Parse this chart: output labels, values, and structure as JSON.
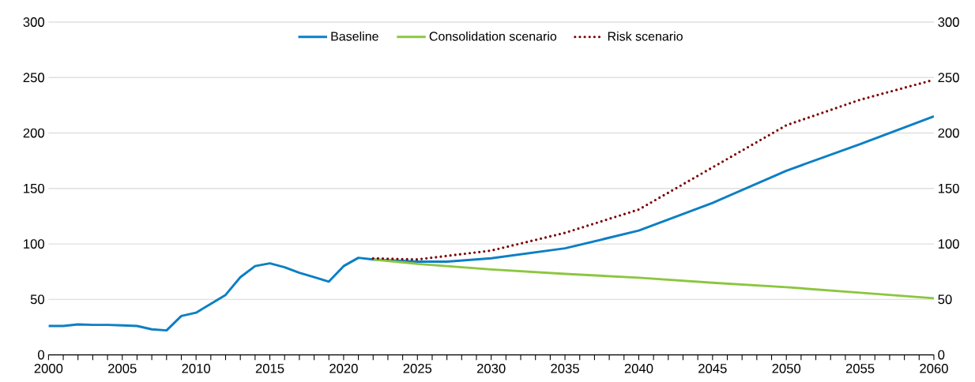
{
  "chart_data": {
    "type": "line",
    "series": [
      {
        "name": "Baseline",
        "color": "#0c7fc4",
        "line_style": "solid",
        "x": [
          2000,
          2001,
          2002,
          2003,
          2004,
          2005,
          2006,
          2007,
          2008,
          2009,
          2010,
          2011,
          2012,
          2013,
          2014,
          2015,
          2016,
          2017,
          2018,
          2019,
          2020,
          2021,
          2022,
          2025,
          2027,
          2030,
          2035,
          2040,
          2045,
          2050,
          2055,
          2060
        ],
        "values": [
          26,
          26,
          27.5,
          27,
          27,
          26.5,
          26,
          23,
          22,
          35,
          38,
          46,
          54,
          70,
          80,
          82.5,
          79,
          74,
          70,
          66,
          80,
          87.5,
          86,
          84,
          84,
          87,
          96,
          112,
          137,
          166,
          190,
          215
        ]
      },
      {
        "name": "Consolidation scenario",
        "color": "#8cc63f",
        "line_style": "solid",
        "x": [
          2022,
          2025,
          2030,
          2035,
          2040,
          2045,
          2050,
          2055,
          2060
        ],
        "values": [
          86,
          82,
          77,
          73,
          69.5,
          65,
          61,
          56,
          51
        ]
      },
      {
        "name": "Risk scenario",
        "color": "#7b0000",
        "line_style": "dotted",
        "x": [
          2022,
          2025,
          2030,
          2035,
          2040,
          2045,
          2050,
          2055,
          2060
        ],
        "values": [
          87,
          86,
          94,
          110,
          131,
          169,
          207,
          230,
          248
        ]
      }
    ],
    "xlim": [
      2000,
      2060
    ],
    "xticks": [
      2000,
      {
        "value": 2001,
        "label": null
      },
      {
        "value": 2002,
        "label": null
      },
      {
        "value": 2003,
        "label": null
      },
      {
        "value": 2004,
        "label": null
      },
      2005,
      {
        "value": 2006,
        "label": null
      },
      {
        "value": 2007,
        "label": null
      },
      {
        "value": 2008,
        "label": null
      },
      {
        "value": 2009,
        "label": null
      },
      2010,
      {
        "value": 2011,
        "label": null
      },
      {
        "value": 2012,
        "label": null
      },
      {
        "value": 2013,
        "label": null
      },
      {
        "value": 2014,
        "label": null
      },
      2015,
      {
        "value": 2016,
        "label": null
      },
      {
        "value": 2017,
        "label": null
      },
      {
        "value": 2018,
        "label": null
      },
      {
        "value": 2019,
        "label": null
      },
      2020,
      {
        "value": 2021,
        "label": null
      },
      {
        "value": 2022,
        "label": null
      },
      {
        "value": 2023,
        "label": null
      },
      {
        "value": 2024,
        "label": null
      },
      2025,
      {
        "value": 2026,
        "label": null
      },
      {
        "value": 2027,
        "label": null
      },
      {
        "value": 2028,
        "label": null
      },
      {
        "value": 2029,
        "label": null
      },
      2030,
      {
        "value": 2031,
        "label": null
      },
      {
        "value": 2032,
        "label": null
      },
      {
        "value": 2033,
        "label": null
      },
      {
        "value": 2034,
        "label": null
      },
      2035,
      {
        "value": 2036,
        "label": null
      },
      {
        "value": 2037,
        "label": null
      },
      {
        "value": 2038,
        "label": null
      },
      {
        "value": 2039,
        "label": null
      },
      2040,
      {
        "value": 2041,
        "label": null
      },
      {
        "value": 2042,
        "label": null
      },
      {
        "value": 2043,
        "label": null
      },
      {
        "value": 2044,
        "label": null
      },
      2045,
      {
        "value": 2046,
        "label": null
      },
      {
        "value": 2047,
        "label": null
      },
      {
        "value": 2048,
        "label": null
      },
      {
        "value": 2049,
        "label": null
      },
      2050,
      {
        "value": 2051,
        "label": null
      },
      {
        "value": 2052,
        "label": null
      },
      {
        "value": 2053,
        "label": null
      },
      {
        "value": 2054,
        "label": null
      },
      2055,
      {
        "value": 2056,
        "label": null
      },
      {
        "value": 2057,
        "label": null
      },
      {
        "value": 2058,
        "label": null
      },
      {
        "value": 2059,
        "label": null
      },
      2060
    ],
    "ylim": [
      0,
      300
    ],
    "yticks": [
      0,
      50,
      100,
      150,
      200,
      250,
      300
    ],
    "y2lim": [
      0,
      300
    ],
    "y2ticks": [
      0,
      50,
      100,
      150,
      200,
      250,
      300
    ],
    "grid": "y",
    "legend": "top",
    "marker": "none"
  }
}
